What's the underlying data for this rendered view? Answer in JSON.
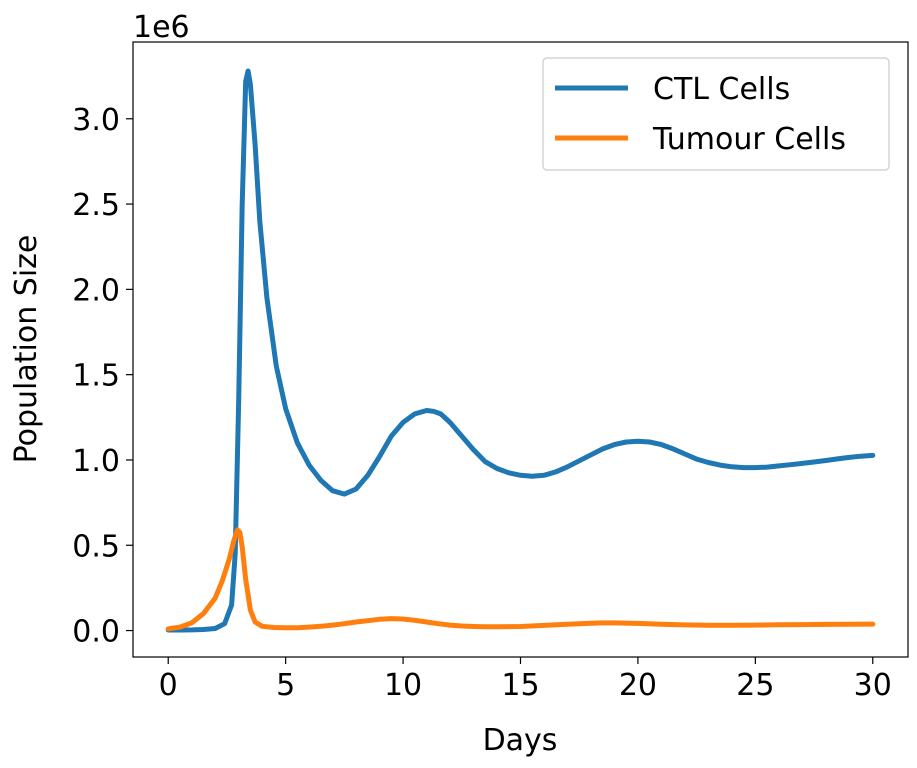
{
  "chart_data": {
    "type": "line",
    "xlabel": "Days",
    "ylabel": "Population Size",
    "y_offset_label": "1e6",
    "xlim": [
      -1.5,
      31.5
    ],
    "ylim": [
      -0.155,
      3.45
    ],
    "x_ticks": [
      0,
      5,
      10,
      15,
      20,
      25,
      30
    ],
    "x_tick_labels": [
      "0",
      "5",
      "10",
      "15",
      "20",
      "25",
      "30"
    ],
    "y_ticks": [
      0.0,
      0.5,
      1.0,
      1.5,
      2.0,
      2.5,
      3.0
    ],
    "y_tick_labels": [
      "0.0",
      "0.5",
      "1.0",
      "1.5",
      "2.0",
      "2.5",
      "3.0"
    ],
    "y_unit_scale": 1000000,
    "grid": false,
    "legend_position": "top-right",
    "series": [
      {
        "name": "CTL Cells",
        "color": "#1f77b4",
        "x": [
          0,
          0.5,
          1,
          1.5,
          2,
          2.4,
          2.7,
          2.85,
          3.0,
          3.15,
          3.3,
          3.4,
          3.5,
          3.7,
          3.9,
          4.2,
          4.6,
          5,
          5.5,
          6,
          6.5,
          7,
          7.5,
          8,
          8.5,
          9,
          9.5,
          10,
          10.5,
          11,
          11.3,
          11.6,
          12,
          12.5,
          13,
          13.5,
          14,
          14.5,
          15,
          15.5,
          16,
          16.5,
          17,
          17.5,
          18,
          18.5,
          19,
          19.5,
          20,
          20.5,
          21,
          21.5,
          22,
          22.5,
          23,
          23.5,
          24,
          24.5,
          25,
          25.5,
          26,
          26.5,
          27,
          27.5,
          28,
          28.5,
          29,
          29.5,
          30
        ],
        "values": [
          0.003,
          0.003,
          0.004,
          0.006,
          0.012,
          0.04,
          0.15,
          0.45,
          1.35,
          2.5,
          3.22,
          3.28,
          3.2,
          2.85,
          2.4,
          1.95,
          1.55,
          1.3,
          1.1,
          0.97,
          0.88,
          0.82,
          0.8,
          0.83,
          0.91,
          1.02,
          1.14,
          1.22,
          1.27,
          1.29,
          1.285,
          1.27,
          1.22,
          1.14,
          1.06,
          0.99,
          0.95,
          0.925,
          0.91,
          0.905,
          0.91,
          0.93,
          0.96,
          0.995,
          1.03,
          1.065,
          1.09,
          1.105,
          1.11,
          1.105,
          1.09,
          1.065,
          1.035,
          1.005,
          0.985,
          0.97,
          0.96,
          0.955,
          0.955,
          0.958,
          0.965,
          0.972,
          0.98,
          0.988,
          0.997,
          1.006,
          1.015,
          1.022,
          1.027
        ]
      },
      {
        "name": "Tumour Cells",
        "color": "#ff7f0e",
        "x": [
          0,
          0.5,
          1,
          1.5,
          2,
          2.3,
          2.6,
          2.8,
          2.95,
          3.05,
          3.15,
          3.3,
          3.5,
          3.7,
          4,
          4.5,
          5,
          5.5,
          6,
          6.5,
          7,
          7.5,
          8,
          8.5,
          9,
          9.5,
          10,
          10.5,
          11,
          11.5,
          12,
          12.5,
          13,
          13.5,
          14,
          15,
          16,
          17,
          18,
          18.5,
          19,
          20,
          21,
          22,
          23,
          24,
          25,
          26,
          27,
          28,
          29,
          30
        ],
        "values": [
          0.01,
          0.02,
          0.045,
          0.1,
          0.19,
          0.29,
          0.42,
          0.53,
          0.59,
          0.575,
          0.49,
          0.3,
          0.12,
          0.05,
          0.025,
          0.018,
          0.016,
          0.017,
          0.02,
          0.025,
          0.032,
          0.04,
          0.05,
          0.058,
          0.066,
          0.07,
          0.068,
          0.06,
          0.05,
          0.04,
          0.032,
          0.027,
          0.024,
          0.022,
          0.022,
          0.024,
          0.03,
          0.037,
          0.043,
          0.045,
          0.045,
          0.042,
          0.037,
          0.033,
          0.031,
          0.031,
          0.032,
          0.034,
          0.035,
          0.036,
          0.037,
          0.038
        ]
      }
    ]
  }
}
